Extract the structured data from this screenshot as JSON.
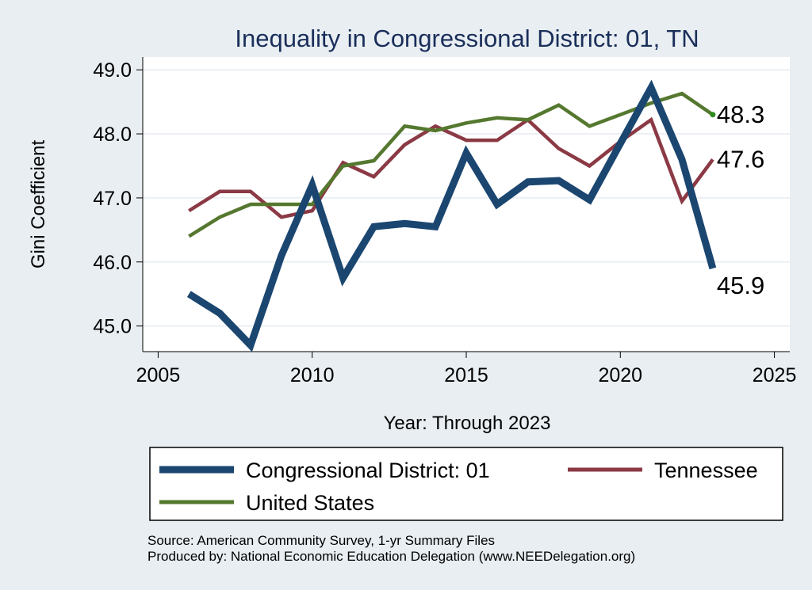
{
  "colors": {
    "background": "#e8eef2",
    "plot_bg": "#ffffff",
    "grid": "#e6ecf0",
    "axis": "#000000",
    "title": "#1a2e5a",
    "district": "#1b4670",
    "tennessee": "#8b3a45",
    "us": "#55782f",
    "us_dot": "#2e8b1e"
  },
  "chart_data": {
    "type": "line",
    "title": "Inequality in Congressional District:  01, TN",
    "xlabel": "Year: Through 2023",
    "ylabel": "Gini Coefficient",
    "xlim": [
      2004.5,
      2025.5
    ],
    "ylim": [
      44.6,
      49.2
    ],
    "x_ticks": [
      2005,
      2010,
      2015,
      2020,
      2025
    ],
    "x_tick_labels": [
      "2005",
      "2010",
      "2015",
      "2020",
      "2025"
    ],
    "y_ticks": [
      45.0,
      46.0,
      47.0,
      48.0,
      49.0
    ],
    "y_tick_labels": [
      "45.0",
      "46.0",
      "47.0",
      "48.0",
      "49.0"
    ],
    "grid": true,
    "x": [
      2006,
      2007,
      2008,
      2009,
      2010,
      2011,
      2012,
      2013,
      2014,
      2015,
      2016,
      2017,
      2018,
      2019,
      2020,
      2021,
      2022,
      2023
    ],
    "series": [
      {
        "name": "Congressional District:  01",
        "key": "district",
        "values": [
          45.5,
          45.2,
          44.7,
          46.1,
          47.2,
          45.75,
          46.55,
          46.6,
          46.55,
          47.7,
          46.9,
          47.25,
          47.27,
          46.97,
          47.85,
          48.72,
          47.6,
          45.9
        ],
        "end_label": "45.9"
      },
      {
        "name": "Tennessee",
        "key": "tennessee",
        "values": [
          46.8,
          47.1,
          47.1,
          46.7,
          46.8,
          47.55,
          47.33,
          47.83,
          48.12,
          47.9,
          47.9,
          48.22,
          47.77,
          47.5,
          47.88,
          48.22,
          46.95,
          47.6
        ],
        "end_label": "47.6"
      },
      {
        "name": "United States",
        "key": "us",
        "values": [
          46.4,
          46.7,
          46.9,
          46.9,
          46.9,
          47.5,
          47.58,
          48.12,
          48.05,
          48.17,
          48.25,
          48.22,
          48.45,
          48.12,
          48.3,
          48.48,
          48.63,
          48.3
        ],
        "end_label": "48.3"
      }
    ],
    "legend": {
      "position": "bottom",
      "entries": [
        "Congressional District:  01",
        "Tennessee",
        "United States"
      ]
    }
  },
  "source": {
    "line1": "Source: American Community Survey, 1-yr Summary Files",
    "line2": "Produced by: National Economic Education Delegation (www.NEEDelegation.org)"
  }
}
